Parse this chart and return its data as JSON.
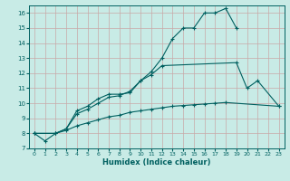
{
  "xlabel": "Humidex (Indice chaleur)",
  "xlim": [
    -0.5,
    23.5
  ],
  "ylim": [
    7,
    16.5
  ],
  "yticks": [
    7,
    8,
    9,
    10,
    11,
    12,
    13,
    14,
    15,
    16
  ],
  "xticks": [
    0,
    1,
    2,
    3,
    4,
    5,
    6,
    7,
    8,
    9,
    10,
    11,
    12,
    13,
    14,
    15,
    16,
    17,
    18,
    19,
    20,
    21,
    22,
    23
  ],
  "bg_color": "#c8ebe6",
  "grid_color": "#c8a8a8",
  "line_color": "#006060",
  "lines": [
    {
      "x": [
        0,
        1,
        2,
        3,
        4,
        5,
        6,
        7,
        8,
        9,
        10,
        11,
        12,
        13,
        14,
        15,
        16,
        17,
        18,
        19
      ],
      "y": [
        8.0,
        7.5,
        8.0,
        8.3,
        9.5,
        9.8,
        10.3,
        10.6,
        10.6,
        10.7,
        11.5,
        12.1,
        13.0,
        14.3,
        15.0,
        15.0,
        16.0,
        16.0,
        16.3,
        15.0
      ]
    },
    {
      "x": [
        0,
        2,
        3,
        4,
        5,
        6,
        7,
        8,
        9,
        10,
        11,
        12,
        19,
        20,
        21,
        23
      ],
      "y": [
        8.0,
        8.0,
        8.3,
        9.3,
        9.6,
        10.0,
        10.4,
        10.5,
        10.8,
        11.5,
        11.9,
        12.5,
        12.7,
        11.0,
        11.5,
        9.8
      ]
    },
    {
      "x": [
        0,
        2,
        3,
        4,
        5,
        6,
        7,
        8,
        9,
        10,
        11,
        12,
        13,
        14,
        15,
        16,
        17,
        18,
        23
      ],
      "y": [
        8.0,
        8.0,
        8.2,
        8.5,
        8.7,
        8.9,
        9.1,
        9.2,
        9.4,
        9.5,
        9.6,
        9.7,
        9.8,
        9.85,
        9.9,
        9.95,
        10.0,
        10.05,
        9.8
      ]
    }
  ]
}
